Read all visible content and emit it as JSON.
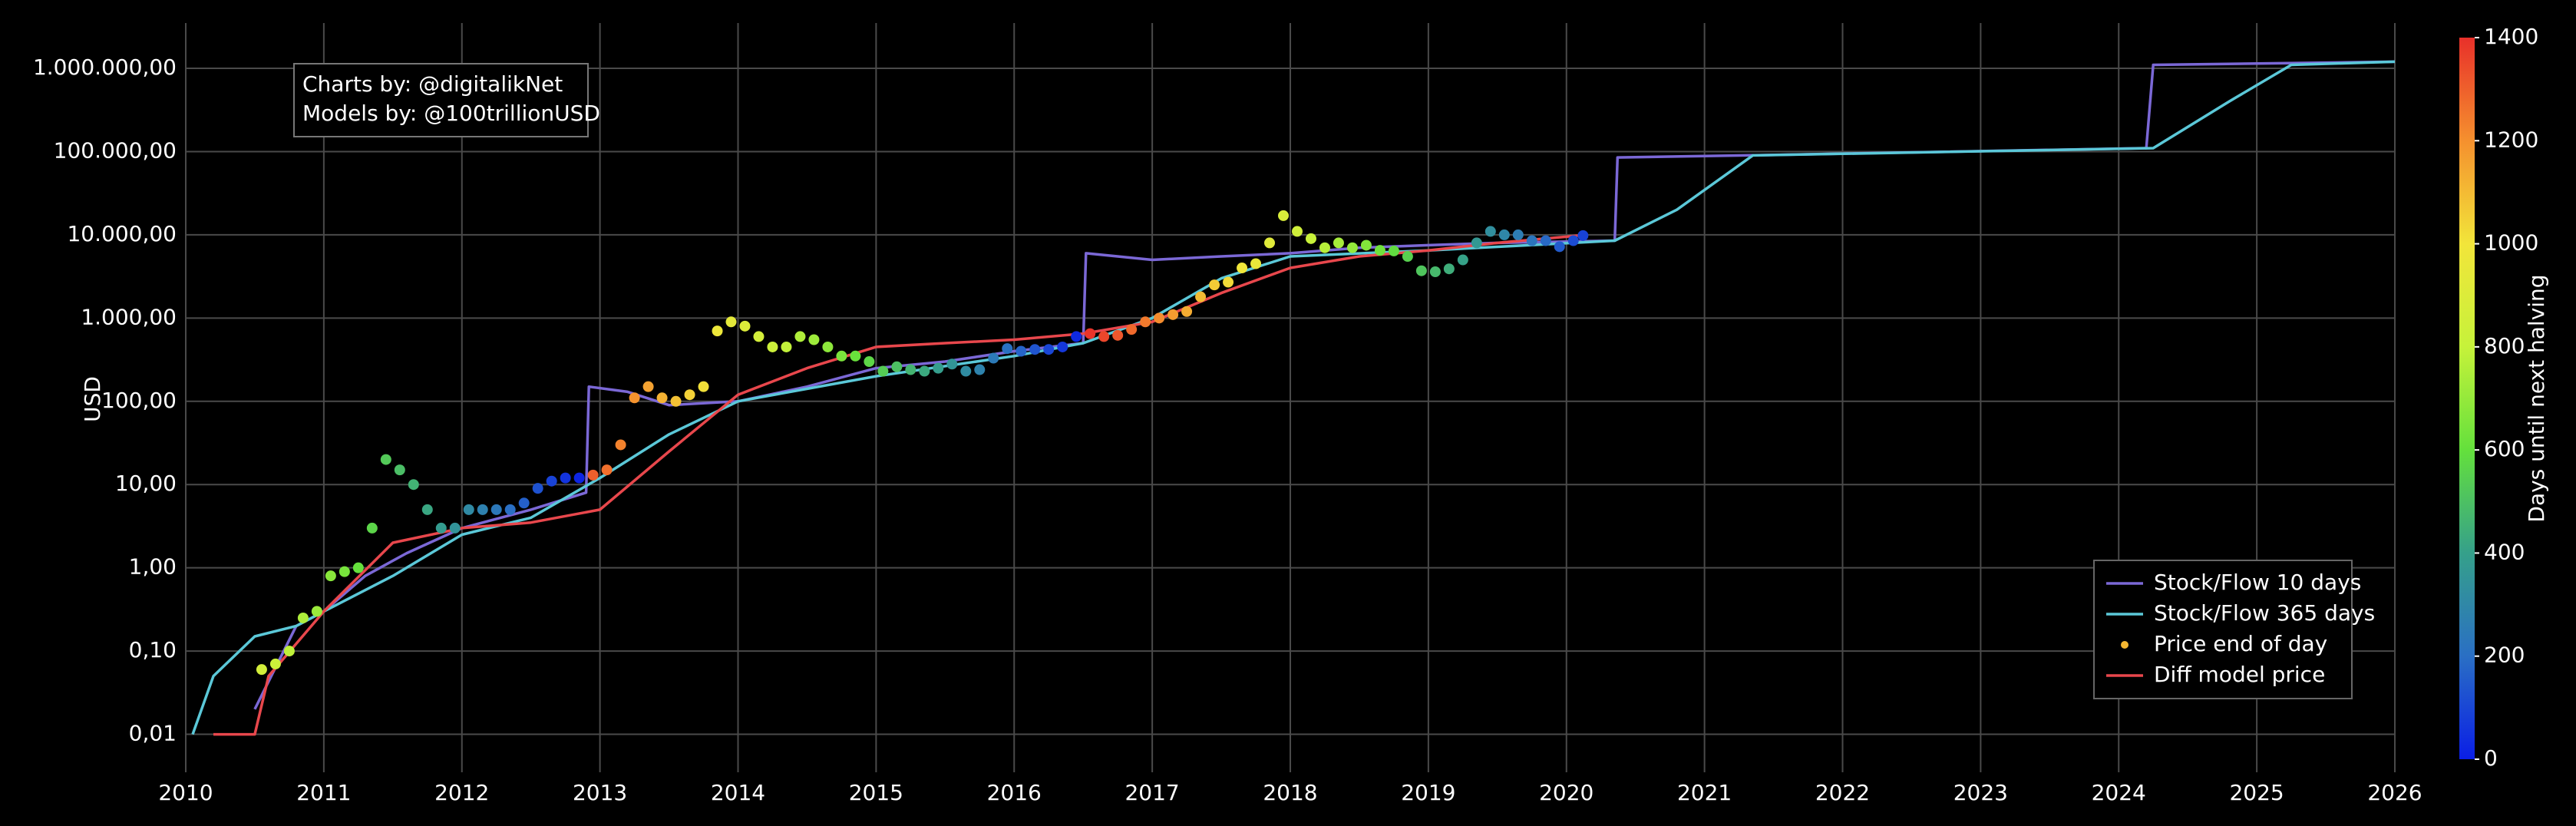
{
  "chart_data": {
    "type": "line",
    "ylabel": "USD",
    "log_y": true,
    "grid": true,
    "xlim": [
      2010,
      2026
    ],
    "xticks": [
      2010,
      2011,
      2012,
      2013,
      2014,
      2015,
      2016,
      2017,
      2018,
      2019,
      2020,
      2021,
      2022,
      2023,
      2024,
      2025,
      2026
    ],
    "ylim": [
      0.0035,
      3500000
    ],
    "yticks": [
      {
        "value": 0.01,
        "label": "0,01"
      },
      {
        "value": 0.1,
        "label": "0,10"
      },
      {
        "value": 1,
        "label": "1,00"
      },
      {
        "value": 10,
        "label": "10,00"
      },
      {
        "value": 100,
        "label": "100,00"
      },
      {
        "value": 1000,
        "label": "1.000,00"
      },
      {
        "value": 10000,
        "label": "10.000,00"
      },
      {
        "value": 100000,
        "label": "100.000,00"
      },
      {
        "value": 1000000,
        "label": "1.000.000,00"
      }
    ],
    "annotations": [
      "Charts by: @digitalikNet",
      "Models by: @100trillionUSD"
    ],
    "legend_position": "lower right",
    "colorbar": {
      "label": "Days until next halving",
      "lim": [
        0,
        1400
      ],
      "ticks": [
        0,
        200,
        400,
        600,
        800,
        1000,
        1200,
        1400
      ],
      "colorscale": [
        "#0a1ee6",
        "#2a6fc4",
        "#35a08a",
        "#64e03c",
        "#c6f23a",
        "#f2e53a",
        "#f5902e",
        "#e8302a"
      ]
    },
    "series": [
      {
        "name": "Stock/Flow 10 days",
        "kind": "line",
        "color": "#7b68d6",
        "x": [
          2010.5,
          2010.8,
          2011.0,
          2011.3,
          2011.6,
          2012.0,
          2012.5,
          2012.9,
          2012.92,
          2013.2,
          2013.5,
          2014.0,
          2014.5,
          2015.0,
          2015.5,
          2016.0,
          2016.5,
          2016.52,
          2017.0,
          2017.5,
          2018.0,
          2018.5,
          2019.0,
          2019.5,
          2020.35,
          2020.37,
          2021.3,
          2024.2,
          2024.25,
          2026.0
        ],
        "values": [
          0.02,
          0.2,
          0.3,
          0.8,
          1.5,
          3,
          5,
          8,
          150,
          130,
          90,
          100,
          150,
          250,
          300,
          400,
          500,
          6000,
          5000,
          5500,
          6000,
          7000,
          7500,
          8000,
          8500,
          85000,
          90000,
          110000,
          1100000,
          1200000
        ]
      },
      {
        "name": "Stock/Flow 365 days",
        "kind": "line",
        "color": "#5bc8d8",
        "x": [
          2010.05,
          2010.2,
          2010.5,
          2010.8,
          2011.0,
          2011.5,
          2012.0,
          2012.5,
          2013.0,
          2013.5,
          2014.0,
          2015.0,
          2016.0,
          2016.5,
          2017.0,
          2017.5,
          2018.0,
          2019.0,
          2020.35,
          2020.8,
          2021.35,
          2024.25,
          2024.8,
          2025.25,
          2026.0
        ],
        "values": [
          0.01,
          0.05,
          0.15,
          0.2,
          0.3,
          0.8,
          2.5,
          4,
          12,
          40,
          100,
          200,
          350,
          500,
          1000,
          3000,
          5500,
          6500,
          8500,
          20000,
          90000,
          110000,
          400000,
          1100000,
          1200000
        ]
      },
      {
        "name": "Price end of day",
        "kind": "scatter",
        "color": "#f5b731",
        "x": [
          2010.55,
          2010.65,
          2010.75,
          2010.85,
          2010.95,
          2011.05,
          2011.15,
          2011.25,
          2011.35,
          2011.45,
          2011.55,
          2011.65,
          2011.75,
          2011.85,
          2011.95,
          2012.05,
          2012.15,
          2012.25,
          2012.35,
          2012.45,
          2012.55,
          2012.65,
          2012.75,
          2012.85,
          2012.95,
          2013.05,
          2013.15,
          2013.25,
          2013.35,
          2013.45,
          2013.55,
          2013.65,
          2013.75,
          2013.85,
          2013.95,
          2014.05,
          2014.15,
          2014.25,
          2014.35,
          2014.45,
          2014.55,
          2014.65,
          2014.75,
          2014.85,
          2014.95,
          2015.05,
          2015.15,
          2015.25,
          2015.35,
          2015.45,
          2015.55,
          2015.65,
          2015.75,
          2015.85,
          2015.95,
          2016.05,
          2016.15,
          2016.25,
          2016.35,
          2016.45,
          2016.55,
          2016.65,
          2016.75,
          2016.85,
          2016.95,
          2017.05,
          2017.15,
          2017.25,
          2017.35,
          2017.45,
          2017.55,
          2017.65,
          2017.75,
          2017.85,
          2017.95,
          2018.05,
          2018.15,
          2018.25,
          2018.35,
          2018.45,
          2018.55,
          2018.65,
          2018.75,
          2018.85,
          2018.95,
          2019.05,
          2019.15,
          2019.25,
          2019.35,
          2019.45,
          2019.55,
          2019.65,
          2019.75,
          2019.85,
          2019.95,
          2020.05,
          2020.12
        ],
        "values": [
          0.06,
          0.07,
          0.1,
          0.25,
          0.3,
          0.8,
          0.9,
          1.0,
          3,
          20,
          15,
          10,
          5,
          3,
          3,
          5,
          5,
          5,
          5,
          6,
          9,
          11,
          12,
          12,
          13,
          15,
          30,
          110,
          150,
          110,
          100,
          120,
          150,
          700,
          900,
          800,
          600,
          450,
          450,
          600,
          550,
          450,
          350,
          350,
          300,
          230,
          260,
          240,
          230,
          250,
          280,
          230,
          240,
          330,
          430,
          400,
          420,
          420,
          450,
          600,
          650,
          600,
          620,
          730,
          900,
          1000,
          1100,
          1200,
          1800,
          2500,
          2700,
          4000,
          4500,
          8000,
          17000,
          11000,
          9000,
          7000,
          8000,
          7000,
          7500,
          6500,
          6400,
          5500,
          3700,
          3600,
          3900,
          5000,
          8000,
          11000,
          10000,
          10000,
          8500,
          8500,
          7200,
          8500,
          9800
        ],
        "color_values": [
          858,
          821,
          785,
          748,
          712,
          675,
          639,
          602,
          566,
          529,
          493,
          456,
          420,
          383,
          347,
          310,
          274,
          237,
          201,
          164,
          128,
          91,
          55,
          18,
          1303,
          1267,
          1230,
          1194,
          1157,
          1121,
          1084,
          1048,
          1011,
          975,
          938,
          902,
          865,
          829,
          792,
          756,
          719,
          683,
          646,
          610,
          573,
          537,
          500,
          464,
          427,
          391,
          354,
          318,
          281,
          245,
          208,
          172,
          135,
          99,
          62,
          26,
          1391,
          1354,
          1318,
          1281,
          1245,
          1208,
          1172,
          1135,
          1099,
          1062,
          1026,
          989,
          953,
          916,
          880,
          843,
          807,
          770,
          734,
          697,
          661,
          624,
          588,
          551,
          515,
          478,
          442,
          405,
          369,
          332,
          296,
          259,
          223,
          186,
          150,
          113,
          88
        ]
      },
      {
        "name": "Diff model price",
        "kind": "line",
        "color": "#e8474c",
        "x": [
          2010.2,
          2010.5,
          2010.6,
          2011.0,
          2011.5,
          2012.0,
          2012.5,
          2013.0,
          2013.5,
          2014.0,
          2014.5,
          2015.0,
          2015.5,
          2016.0,
          2016.5,
          2017.0,
          2017.5,
          2018.0,
          2018.5,
          2019.0,
          2019.5,
          2020.15
        ],
        "values": [
          0.01,
          0.01,
          0.05,
          0.3,
          2,
          3,
          3.5,
          5,
          25,
          120,
          250,
          450,
          500,
          550,
          650,
          900,
          2000,
          4000,
          5500,
          6500,
          8000,
          10000
        ]
      }
    ]
  }
}
